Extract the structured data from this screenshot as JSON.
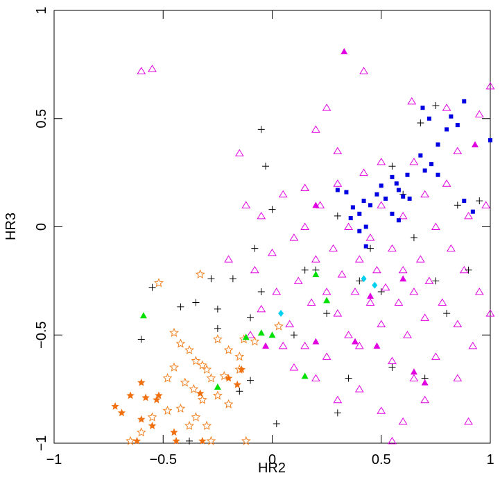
{
  "chart_data": {
    "type": "scatter",
    "x_label": "HR2",
    "y_label": "HR3",
    "xlim": [
      -1,
      1
    ],
    "ylim": [
      -1,
      1
    ],
    "xticks": [
      {
        "value": -1,
        "label": "−1"
      },
      {
        "value": -0.5,
        "label": "−0.5"
      },
      0,
      0.5,
      1
    ],
    "yticks": [
      {
        "value": -1,
        "label": "−1"
      },
      {
        "value": -0.5,
        "label": "−0.5"
      },
      0,
      0.5,
      1
    ],
    "series": [
      {
        "marker": "triangle-open",
        "color": "#e000e0",
        "x": [
          -0.6,
          -0.55,
          0.42,
          0.25,
          0.64,
          0.8,
          0.95,
          1.0,
          -0.15,
          -0.12,
          -0.08,
          -0.05,
          0.0,
          0.02,
          0.05,
          0.08,
          0.1,
          0.12,
          0.15,
          0.15,
          0.18,
          0.2,
          0.22,
          0.25,
          0.25,
          0.28,
          0.3,
          0.3,
          0.32,
          0.35,
          0.35,
          0.38,
          0.4,
          0.4,
          0.42,
          0.45,
          0.45,
          0.48,
          0.5,
          0.5,
          0.52,
          0.55,
          0.55,
          0.58,
          0.6,
          0.6,
          0.62,
          0.65,
          0.65,
          0.68,
          0.7,
          0.7,
          0.72,
          0.75,
          0.75,
          0.78,
          0.8,
          0.82,
          0.85,
          0.85,
          0.88,
          0.9,
          0.92,
          0.95,
          0.98,
          1.0,
          0.2,
          0.3,
          0.5,
          0.6,
          0.7,
          0.9,
          0.55,
          0.1,
          -0.1,
          -0.05,
          0.05,
          0.4,
          0.65,
          0.85,
          0.5,
          0.3,
          0.15,
          0.2,
          -0.2
        ],
        "y": [
          0.72,
          0.73,
          0.72,
          0.55,
          0.58,
          0.55,
          0.52,
          0.65,
          0.34,
          0.1,
          -0.2,
          0.05,
          -0.12,
          -0.3,
          0.15,
          -0.45,
          -0.05,
          -0.25,
          0.0,
          -0.55,
          -0.35,
          -0.15,
          0.1,
          -0.3,
          -0.6,
          -0.1,
          -0.4,
          0.2,
          -0.22,
          -0.5,
          0.0,
          -0.3,
          -0.15,
          -0.75,
          0.25,
          -0.35,
          -0.05,
          -0.2,
          -0.45,
          0.1,
          -0.28,
          -0.1,
          -0.62,
          -0.35,
          0.05,
          -0.2,
          -0.5,
          0.3,
          -0.3,
          -0.15,
          -0.42,
          0.15,
          -0.25,
          -0.6,
          0.0,
          -0.35,
          0.2,
          -0.1,
          -0.45,
          0.35,
          -0.2,
          0.05,
          -0.55,
          -0.3,
          0.1,
          -0.4,
          -0.7,
          -0.8,
          -0.85,
          -0.9,
          -0.8,
          -0.9,
          -0.99,
          -0.65,
          -0.5,
          -0.38,
          -0.55,
          -0.55,
          -0.7,
          -0.7,
          0.3,
          0.35,
          0.18,
          0.45,
          -0.15
        ]
      },
      {
        "marker": "plus",
        "color": "#000000",
        "x": [
          -0.05,
          -0.03,
          -0.6,
          -0.55,
          -0.42,
          -0.35,
          -0.28,
          -0.25,
          -0.25,
          -0.18,
          -0.1,
          -0.08,
          -0.05,
          0.0,
          0.02,
          -0.1,
          -0.15,
          0.1,
          0.2,
          0.3,
          0.35,
          0.45,
          0.5,
          0.55,
          0.6,
          0.68,
          0.75,
          0.8,
          0.85,
          0.9,
          0.95,
          0.7,
          0.4,
          0.25,
          0.65,
          -0.38,
          0.15,
          0.3,
          0.55,
          0.75
        ],
        "y": [
          0.45,
          0.28,
          -0.52,
          -0.28,
          -0.37,
          -0.35,
          -0.24,
          -0.38,
          -0.47,
          -0.24,
          -0.42,
          -0.1,
          -0.3,
          0.08,
          -0.91,
          -0.71,
          -0.76,
          -0.5,
          -0.2,
          -0.86,
          -0.7,
          -0.1,
          -0.3,
          -0.65,
          0.15,
          0.48,
          0.56,
          -0.4,
          0.1,
          -0.2,
          0.12,
          -0.7,
          -0.25,
          -0.4,
          -0.05,
          -0.99,
          -0.2,
          0.05,
          0.28,
          -0.25
        ]
      },
      {
        "marker": "square",
        "color": "#0000e0",
        "x": [
          0.69,
          0.72,
          0.82,
          0.88,
          0.85,
          0.8,
          1.0,
          0.68,
          0.73,
          0.76,
          0.7,
          0.62,
          0.55,
          0.57,
          0.58,
          0.6,
          0.5,
          0.48,
          0.52,
          0.45,
          0.42,
          0.4,
          0.37,
          0.34,
          0.3,
          0.43,
          0.4,
          0.55,
          0.58,
          0.63,
          0.76,
          0.88,
          0.92,
          0.36,
          0.43
        ],
        "y": [
          0.55,
          0.5,
          0.51,
          0.58,
          0.47,
          0.45,
          0.4,
          0.33,
          0.29,
          0.38,
          0.26,
          0.24,
          0.23,
          0.2,
          0.17,
          0.14,
          0.19,
          0.15,
          0.13,
          0.1,
          0.12,
          0.06,
          0.09,
          0.16,
          0.17,
          0.0,
          -0.02,
          0.06,
          0.03,
          0.13,
          0.24,
          0.12,
          0.07,
          0.04,
          -0.09
        ]
      },
      {
        "marker": "star-open",
        "color": "#f08020",
        "x": [
          -0.52,
          -0.45,
          -0.33,
          -0.25,
          -0.2,
          -0.15,
          -0.13,
          -0.08,
          0.03,
          -0.42,
          -0.38,
          -0.35,
          -0.32,
          -0.3,
          -0.28,
          -0.45,
          -0.48,
          -0.4,
          -0.36,
          -0.32,
          -0.25,
          -0.2,
          -0.15,
          -0.42,
          -0.38,
          -0.35,
          -0.48,
          -0.55,
          -0.6,
          -0.65,
          -0.3,
          -0.22,
          -0.12,
          -0.28
        ],
        "y": [
          -0.26,
          -0.49,
          -0.22,
          -0.52,
          -0.57,
          -0.6,
          -0.52,
          -0.53,
          -0.46,
          -0.54,
          -0.57,
          -0.62,
          -0.64,
          -0.66,
          -0.7,
          -0.65,
          -0.7,
          -0.72,
          -0.75,
          -0.8,
          -0.78,
          -0.82,
          -0.66,
          -0.84,
          -0.92,
          -0.88,
          -0.85,
          -0.88,
          -0.95,
          -0.99,
          -0.92,
          -0.69,
          -0.99,
          -0.99
        ]
      },
      {
        "marker": "star",
        "color": "#f07010",
        "x": [
          -0.72,
          -0.69,
          -0.65,
          -0.6,
          -0.58,
          -0.53,
          -0.52,
          -0.6,
          -0.55,
          -0.45,
          -0.44,
          -0.33,
          -0.32,
          -0.2,
          -0.16,
          -0.14,
          -0.62
        ],
        "y": [
          -0.83,
          -0.86,
          -0.78,
          -0.72,
          -0.79,
          -0.8,
          -0.78,
          -0.89,
          -0.92,
          -0.95,
          -0.99,
          -0.77,
          -0.99,
          -0.7,
          -0.73,
          -0.66,
          -0.99
        ]
      },
      {
        "marker": "triangle",
        "color": "#00e000",
        "x": [
          -0.59,
          -0.25,
          -0.12,
          -0.05,
          0.0,
          0.15,
          0.2,
          0.25
        ],
        "y": [
          -0.41,
          -0.74,
          -0.51,
          -0.49,
          -0.5,
          -0.69,
          -0.22,
          -0.34
        ]
      },
      {
        "marker": "triangle",
        "color": "#e000e0",
        "x": [
          0.33,
          0.93,
          0.2,
          -0.03,
          0.38,
          0.48,
          0.65,
          0.7,
          0.2,
          0.6,
          0.45
        ],
        "y": [
          0.81,
          0.38,
          -0.53,
          -0.55,
          -0.53,
          -0.55,
          -0.67,
          -0.72,
          0.1,
          -0.24,
          -0.32
        ]
      },
      {
        "marker": "diamond",
        "color": "#00d0f0",
        "x": [
          0.04,
          0.42,
          0.47
        ],
        "y": [
          -0.4,
          -0.24,
          -0.27
        ]
      }
    ]
  }
}
